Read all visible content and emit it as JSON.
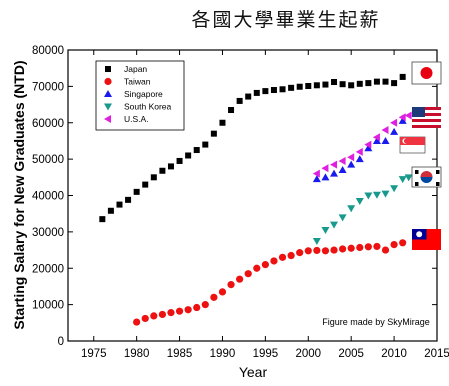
{
  "chart_data": {
    "type": "scatter",
    "title": "各國大學畢業生起薪",
    "xlabel": "Year",
    "ylabel": "Starting Salary for New Graduates (NTD)",
    "xlim": [
      1972,
      2015
    ],
    "ylim": [
      0,
      80000
    ],
    "xticks": [
      1975,
      1980,
      1985,
      1990,
      1995,
      2000,
      2005,
      2010,
      2015
    ],
    "yticks": [
      0,
      10000,
      20000,
      30000,
      40000,
      50000,
      60000,
      70000,
      80000
    ],
    "grid": false,
    "legend_position": "top-left",
    "annotation": "Figure made by SkyMirage",
    "flags": [
      "japan-flag",
      "usa-flag",
      "singapore-flag",
      "south-korea-flag",
      "taiwan-flag"
    ],
    "series": [
      {
        "name": "Japan",
        "marker": "square",
        "color": "#000000",
        "points": [
          [
            1976,
            33500
          ],
          [
            1977,
            35800
          ],
          [
            1978,
            37500
          ],
          [
            1979,
            38800
          ],
          [
            1980,
            41000
          ],
          [
            1981,
            43000
          ],
          [
            1982,
            45000
          ],
          [
            1983,
            46800
          ],
          [
            1984,
            48000
          ],
          [
            1985,
            49500
          ],
          [
            1986,
            51000
          ],
          [
            1987,
            52500
          ],
          [
            1988,
            54000
          ],
          [
            1989,
            57000
          ],
          [
            1990,
            60000
          ],
          [
            1991,
            63500
          ],
          [
            1992,
            66000
          ],
          [
            1993,
            67200
          ],
          [
            1994,
            68200
          ],
          [
            1995,
            68700
          ],
          [
            1996,
            69000
          ],
          [
            1997,
            69200
          ],
          [
            1998,
            69600
          ],
          [
            1999,
            69900
          ],
          [
            2000,
            70100
          ],
          [
            2001,
            70300
          ],
          [
            2002,
            70500
          ],
          [
            2003,
            71200
          ],
          [
            2004,
            70600
          ],
          [
            2005,
            70300
          ],
          [
            2006,
            70700
          ],
          [
            2007,
            70900
          ],
          [
            2008,
            71300
          ],
          [
            2009,
            71300
          ],
          [
            2010,
            70900
          ],
          [
            2011,
            72600
          ]
        ]
      },
      {
        "name": "Taiwan",
        "marker": "circle",
        "color": "#ee1111",
        "points": [
          [
            1980,
            5200
          ],
          [
            1981,
            6200
          ],
          [
            1982,
            6900
          ],
          [
            1983,
            7300
          ],
          [
            1984,
            7800
          ],
          [
            1985,
            8200
          ],
          [
            1986,
            8600
          ],
          [
            1987,
            9200
          ],
          [
            1988,
            10000
          ],
          [
            1989,
            12000
          ],
          [
            1990,
            13500
          ],
          [
            1991,
            15500
          ],
          [
            1992,
            17000
          ],
          [
            1993,
            18500
          ],
          [
            1994,
            20000
          ],
          [
            1995,
            21000
          ],
          [
            1996,
            22000
          ],
          [
            1997,
            23000
          ],
          [
            1998,
            23500
          ],
          [
            1999,
            24300
          ],
          [
            2000,
            24800
          ],
          [
            2001,
            24900
          ],
          [
            2002,
            24800
          ],
          [
            2003,
            25000
          ],
          [
            2004,
            25300
          ],
          [
            2005,
            25500
          ],
          [
            2006,
            25700
          ],
          [
            2007,
            25900
          ],
          [
            2008,
            26000
          ],
          [
            2009,
            25000
          ],
          [
            2010,
            26500
          ],
          [
            2011,
            27000
          ]
        ]
      },
      {
        "name": "Singapore",
        "marker": "triangle-up",
        "color": "#1a1aee",
        "points": [
          [
            2001,
            44500
          ],
          [
            2002,
            45000
          ],
          [
            2003,
            46000
          ],
          [
            2004,
            47000
          ],
          [
            2005,
            48500
          ],
          [
            2006,
            50000
          ],
          [
            2007,
            53000
          ],
          [
            2008,
            55000
          ],
          [
            2009,
            55000
          ],
          [
            2010,
            57500
          ],
          [
            2011,
            60500
          ]
        ]
      },
      {
        "name": "South Korea",
        "marker": "triangle-down",
        "color": "#179a8c",
        "points": [
          [
            2001,
            27500
          ],
          [
            2002,
            30500
          ],
          [
            2003,
            32000
          ],
          [
            2004,
            34000
          ],
          [
            2005,
            36500
          ],
          [
            2006,
            38500
          ],
          [
            2007,
            40000
          ],
          [
            2008,
            40200
          ],
          [
            2009,
            40500
          ],
          [
            2010,
            42000
          ],
          [
            2011,
            44500
          ],
          [
            2011.7,
            45000
          ]
        ]
      },
      {
        "name": "U.S.A.",
        "marker": "triangle-left",
        "color": "#e020e0",
        "points": [
          [
            2001,
            46000
          ],
          [
            2002,
            47500
          ],
          [
            2003,
            48500
          ],
          [
            2004,
            49500
          ],
          [
            2005,
            50500
          ],
          [
            2006,
            52000
          ],
          [
            2007,
            54000
          ],
          [
            2008,
            56000
          ],
          [
            2009,
            58000
          ],
          [
            2010,
            60000
          ],
          [
            2011,
            61500
          ],
          [
            2011.7,
            62000
          ]
        ]
      }
    ]
  }
}
